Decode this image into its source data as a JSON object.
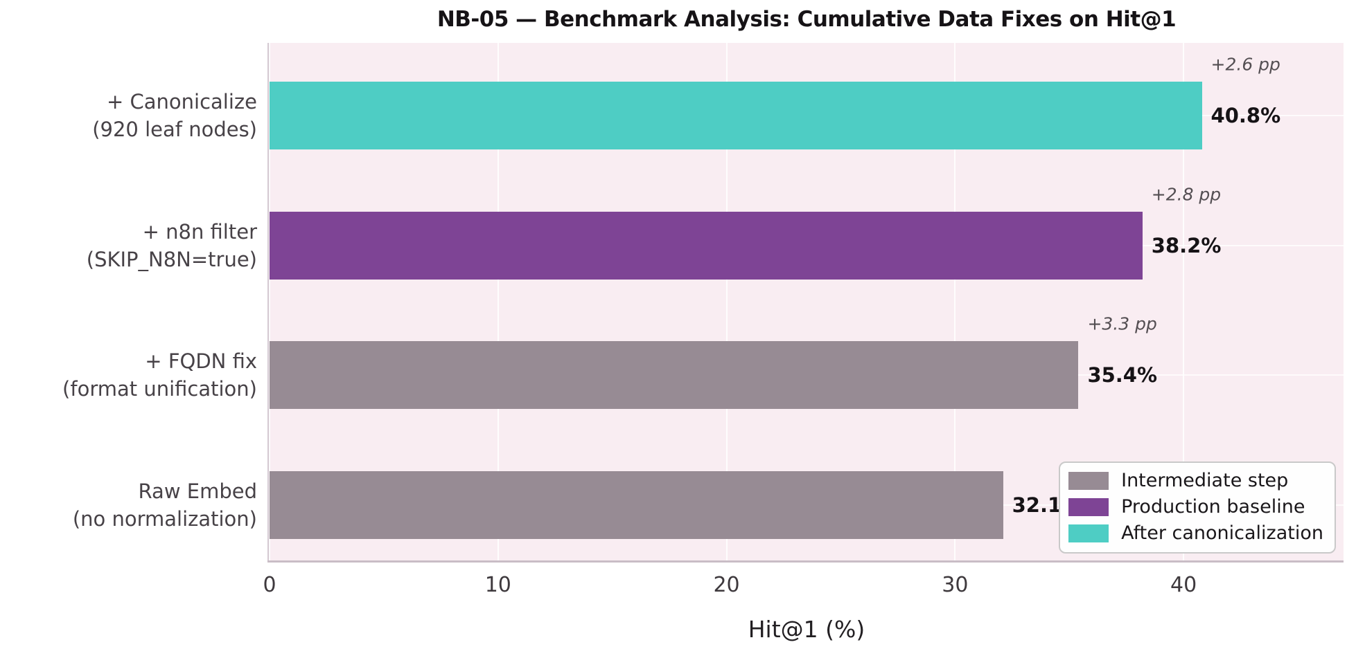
{
  "chart": {
    "title": "NB-05 — Benchmark Analysis: Cumulative Data Fixes on Hit@1",
    "xlabel": "Hit@1 (%)"
  },
  "chart_data": {
    "type": "bar",
    "orientation": "horizontal",
    "title": "NB-05 — Benchmark Analysis: Cumulative Data Fixes on Hit@1",
    "xlabel": "Hit@1 (%)",
    "ylabel": "",
    "xlim": [
      0,
      47
    ],
    "xticks": [
      0,
      10,
      20,
      30,
      40
    ],
    "grid": true,
    "plot_background": "#f9edf2",
    "gridline_color": "#ffffff",
    "legend_position": "lower right",
    "categories": [
      "+ Canonicalize\n(920 leaf nodes)",
      "+ n8n filter\n(SKIP_N8N=true)",
      "+ FQDN fix\n(format unification)",
      "Raw Embed\n(no normalization)"
    ],
    "values": [
      40.8,
      38.2,
      35.4,
      32.1
    ],
    "bars": [
      {
        "label_line1": "+ Canonicalize",
        "label_line2": "(920 leaf nodes)",
        "value": 40.8,
        "value_label": "40.8%",
        "delta_label": "+2.6 pp",
        "series": "After canonicalization",
        "color": "#4ecdc4"
      },
      {
        "label_line1": "+ n8n filter",
        "label_line2": "(SKIP_N8N=true)",
        "value": 38.2,
        "value_label": "38.2%",
        "delta_label": "+2.8 pp",
        "series": "Production baseline",
        "color": "#7e4495"
      },
      {
        "label_line1": "+ FQDN fix",
        "label_line2": "(format unification)",
        "value": 35.4,
        "value_label": "35.4%",
        "delta_label": "+3.3 pp",
        "series": "Intermediate step",
        "color": "#978b94"
      },
      {
        "label_line1": "Raw Embed",
        "label_line2": "(no normalization)",
        "value": 32.1,
        "value_label": "32.1%",
        "delta_label": null,
        "series": "Intermediate step",
        "color": "#978b94"
      }
    ],
    "legend": [
      {
        "label": "Intermediate step",
        "color": "#978b94"
      },
      {
        "label": "Production baseline",
        "color": "#7e4495"
      },
      {
        "label": "After canonicalization",
        "color": "#4ecdc4"
      }
    ]
  },
  "colors": {
    "teal": "#4ecdc4",
    "purple": "#7e4495",
    "gray": "#978b94",
    "plot_bg": "#f9edf2",
    "figure_bg": "#ffffff"
  }
}
